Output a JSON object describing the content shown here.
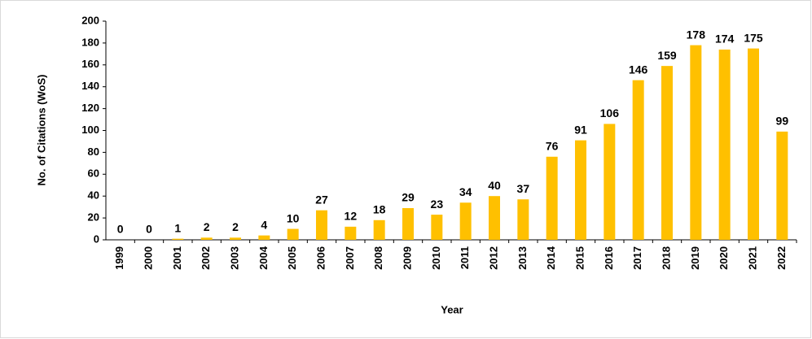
{
  "chart_data": {
    "type": "bar",
    "x_label": "Year",
    "y_label": "No. of Citations (WoS)",
    "categories": [
      "1999",
      "2000",
      "2001",
      "2002",
      "2003",
      "2004",
      "2005",
      "2006",
      "2007",
      "2008",
      "2009",
      "2010",
      "2011",
      "2012",
      "2013",
      "2014",
      "2015",
      "2016",
      "2017",
      "2018",
      "2019",
      "2020",
      "2021",
      "2022"
    ],
    "values": [
      0,
      0,
      1,
      2,
      2,
      4,
      10,
      27,
      12,
      18,
      29,
      23,
      34,
      40,
      37,
      76,
      91,
      106,
      146,
      159,
      178,
      174,
      175,
      99
    ],
    "color": "#ffc000",
    "ylim": [
      0,
      200
    ],
    "yticks": [
      0,
      20,
      40,
      60,
      80,
      100,
      120,
      140,
      160,
      180,
      200
    ],
    "grid": false
  }
}
